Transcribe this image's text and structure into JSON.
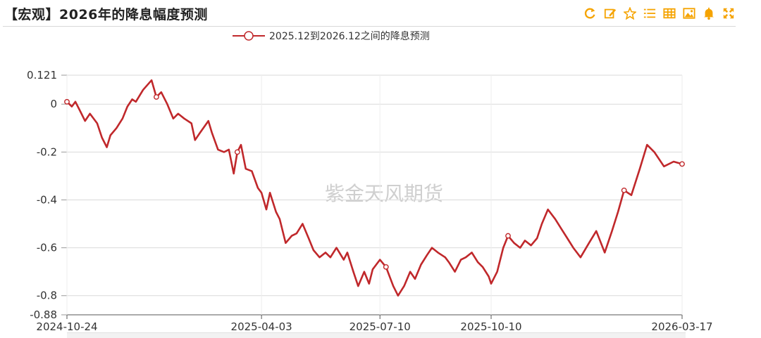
{
  "header": {
    "title": "【宏观】2026年的降息幅度预测"
  },
  "toolbar": {
    "icons": [
      "refresh-icon",
      "edit-icon",
      "star-icon",
      "list-icon",
      "table-icon",
      "image-icon",
      "bell-icon",
      "fullscreen-icon"
    ],
    "color": "#f5a300"
  },
  "watermark": "紫金天风期货",
  "chart_data": {
    "type": "line",
    "title": "【宏观】2026年的降息幅度预测",
    "xlabel": "",
    "ylabel": "",
    "x_range": [
      "2024-10-24",
      "2026-03-17"
    ],
    "x_ticks": [
      "2024-10-24",
      "2025-04-03",
      "2025-07-10",
      "2025-10-10",
      "2026-03-17"
    ],
    "y_ticks": [
      0.121,
      0,
      -0.2,
      -0.4,
      -0.6,
      -0.8,
      -0.88
    ],
    "y_tick_labels": [
      "0.121",
      "0",
      "-0.2",
      "-0.4",
      "-0.6",
      "-0.8",
      "-0.88"
    ],
    "ylim": [
      -0.88,
      0.121
    ],
    "grid": "horizontal",
    "legend_position": "top",
    "series": [
      {
        "name": "2025.12到2026.12之间的降息预测",
        "color": "#c0282b",
        "points": [
          [
            "2024-10-24",
            0.01
          ],
          [
            "2024-10-28",
            -0.01
          ],
          [
            "2024-10-31",
            0.01
          ],
          [
            "2024-11-04",
            -0.03
          ],
          [
            "2024-11-08",
            -0.07
          ],
          [
            "2024-11-12",
            -0.04
          ],
          [
            "2024-11-18",
            -0.08
          ],
          [
            "2024-11-22",
            -0.14
          ],
          [
            "2024-11-26",
            -0.18
          ],
          [
            "2024-11-29",
            -0.13
          ],
          [
            "2024-12-04",
            -0.1
          ],
          [
            "2024-12-09",
            -0.06
          ],
          [
            "2024-12-13",
            -0.01
          ],
          [
            "2024-12-17",
            0.02
          ],
          [
            "2024-12-20",
            0.01
          ],
          [
            "2024-12-26",
            0.06
          ],
          [
            "2025-01-02",
            0.1
          ],
          [
            "2025-01-06",
            0.03
          ],
          [
            "2025-01-10",
            0.05
          ],
          [
            "2025-01-15",
            0.0
          ],
          [
            "2025-01-20",
            -0.06
          ],
          [
            "2025-01-24",
            -0.04
          ],
          [
            "2025-01-29",
            -0.06
          ],
          [
            "2025-02-04",
            -0.08
          ],
          [
            "2025-02-07",
            -0.15
          ],
          [
            "2025-02-11",
            -0.12
          ],
          [
            "2025-02-18",
            -0.07
          ],
          [
            "2025-02-21",
            -0.12
          ],
          [
            "2025-02-26",
            -0.19
          ],
          [
            "2025-03-03",
            -0.2
          ],
          [
            "2025-03-07",
            -0.19
          ],
          [
            "2025-03-11",
            -0.29
          ],
          [
            "2025-03-14",
            -0.2
          ],
          [
            "2025-03-17",
            -0.17
          ],
          [
            "2025-03-21",
            -0.27
          ],
          [
            "2025-03-26",
            -0.28
          ],
          [
            "2025-03-31",
            -0.35
          ],
          [
            "2025-04-03",
            -0.37
          ],
          [
            "2025-04-07",
            -0.44
          ],
          [
            "2025-04-10",
            -0.37
          ],
          [
            "2025-04-15",
            -0.45
          ],
          [
            "2025-04-18",
            -0.48
          ],
          [
            "2025-04-23",
            -0.58
          ],
          [
            "2025-04-28",
            -0.55
          ],
          [
            "2025-05-02",
            -0.54
          ],
          [
            "2025-05-07",
            -0.5
          ],
          [
            "2025-05-12",
            -0.56
          ],
          [
            "2025-05-16",
            -0.61
          ],
          [
            "2025-05-21",
            -0.64
          ],
          [
            "2025-05-26",
            -0.62
          ],
          [
            "2025-05-30",
            -0.64
          ],
          [
            "2025-06-04",
            -0.6
          ],
          [
            "2025-06-10",
            -0.65
          ],
          [
            "2025-06-13",
            -0.62
          ],
          [
            "2025-06-18",
            -0.7
          ],
          [
            "2025-06-22",
            -0.76
          ],
          [
            "2025-06-27",
            -0.7
          ],
          [
            "2025-07-01",
            -0.75
          ],
          [
            "2025-07-04",
            -0.69
          ],
          [
            "2025-07-10",
            -0.65
          ],
          [
            "2025-07-15",
            -0.68
          ],
          [
            "2025-07-21",
            -0.76
          ],
          [
            "2025-07-25",
            -0.8
          ],
          [
            "2025-07-30",
            -0.76
          ],
          [
            "2025-08-04",
            -0.7
          ],
          [
            "2025-08-08",
            -0.73
          ],
          [
            "2025-08-13",
            -0.67
          ],
          [
            "2025-08-18",
            -0.63
          ],
          [
            "2025-08-22",
            -0.6
          ],
          [
            "2025-08-27",
            -0.62
          ],
          [
            "2025-09-02",
            -0.64
          ],
          [
            "2025-09-05",
            -0.66
          ],
          [
            "2025-09-10",
            -0.7
          ],
          [
            "2025-09-15",
            -0.65
          ],
          [
            "2025-09-19",
            -0.64
          ],
          [
            "2025-09-24",
            -0.62
          ],
          [
            "2025-09-29",
            -0.66
          ],
          [
            "2025-10-03",
            -0.68
          ],
          [
            "2025-10-08",
            -0.72
          ],
          [
            "2025-10-10",
            -0.75
          ],
          [
            "2025-10-15",
            -0.7
          ],
          [
            "2025-10-20",
            -0.6
          ],
          [
            "2025-10-24",
            -0.55
          ],
          [
            "2025-10-29",
            -0.58
          ],
          [
            "2025-11-03",
            -0.6
          ],
          [
            "2025-11-07",
            -0.57
          ],
          [
            "2025-11-12",
            -0.59
          ],
          [
            "2025-11-17",
            -0.56
          ],
          [
            "2025-11-21",
            -0.5
          ],
          [
            "2025-11-26",
            -0.44
          ],
          [
            "2025-12-02",
            -0.48
          ],
          [
            "2025-12-07",
            -0.52
          ],
          [
            "2025-12-12",
            -0.56
          ],
          [
            "2025-12-17",
            -0.6
          ],
          [
            "2025-12-23",
            -0.64
          ],
          [
            "2025-12-30",
            -0.58
          ],
          [
            "2026-01-05",
            -0.53
          ],
          [
            "2026-01-12",
            -0.62
          ],
          [
            "2026-01-18",
            -0.53
          ],
          [
            "2026-01-23",
            -0.45
          ],
          [
            "2026-01-28",
            -0.36
          ],
          [
            "2026-02-03",
            -0.38
          ],
          [
            "2026-02-10",
            -0.27
          ],
          [
            "2026-02-16",
            -0.17
          ],
          [
            "2026-02-22",
            -0.2
          ],
          [
            "2026-03-02",
            -0.26
          ],
          [
            "2026-03-10",
            -0.24
          ],
          [
            "2026-03-17",
            -0.25
          ]
        ]
      }
    ]
  }
}
